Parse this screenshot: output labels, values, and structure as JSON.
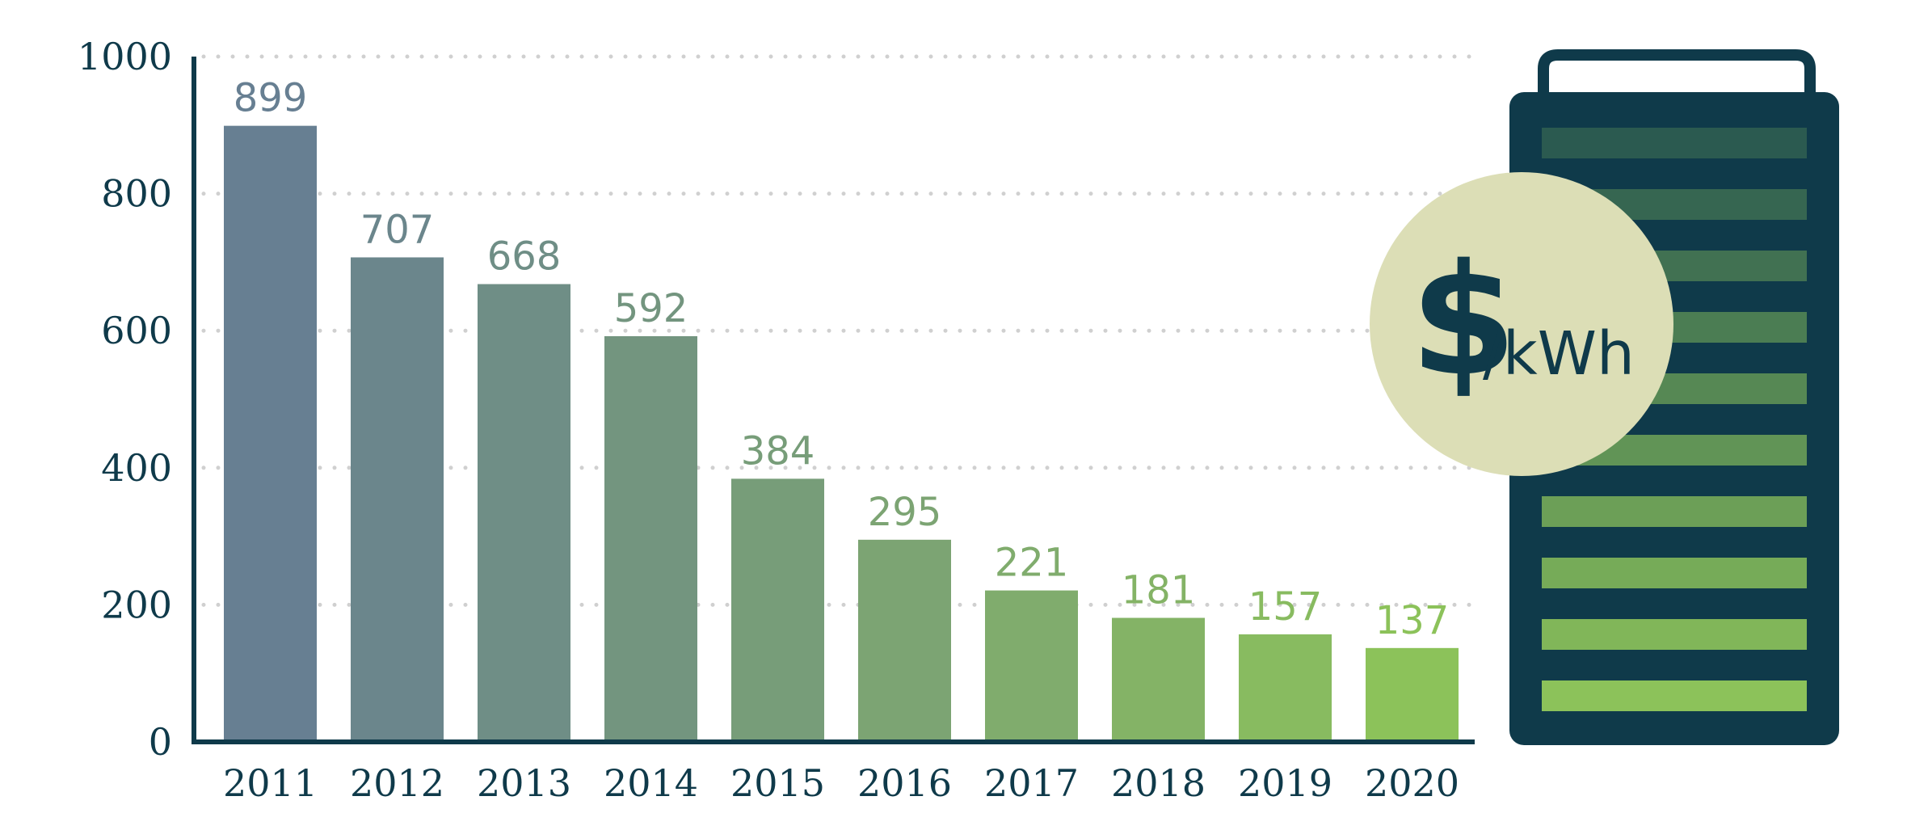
{
  "chart_data": {
    "type": "bar",
    "title": "",
    "xlabel": "",
    "ylabel": "",
    "categories": [
      "2011",
      "2012",
      "2013",
      "2014",
      "2015",
      "2016",
      "2017",
      "2018",
      "2019",
      "2020"
    ],
    "values": [
      899,
      707,
      668,
      592,
      384,
      295,
      221,
      181,
      157,
      137
    ],
    "ylim": [
      0,
      1000
    ],
    "yticks": [
      0,
      200,
      400,
      600,
      800,
      1000
    ],
    "grid": "horizontal dotted",
    "data_labels": true,
    "unit_badge": {
      "symbol": "$",
      "unit": "/kWh"
    },
    "colors": {
      "axis": "#0f3a4a",
      "grid": "#d0d0d0",
      "bar_start": "#677f92",
      "bar_end": "#8cc25a",
      "badge_fill": "#dcdeb6",
      "battery_body": "#0f3a4a",
      "cell_start": "#2b5a50",
      "cell_end": "#8cc25a"
    },
    "icons": [
      "battery-icon",
      "price-badge-icon"
    ]
  }
}
